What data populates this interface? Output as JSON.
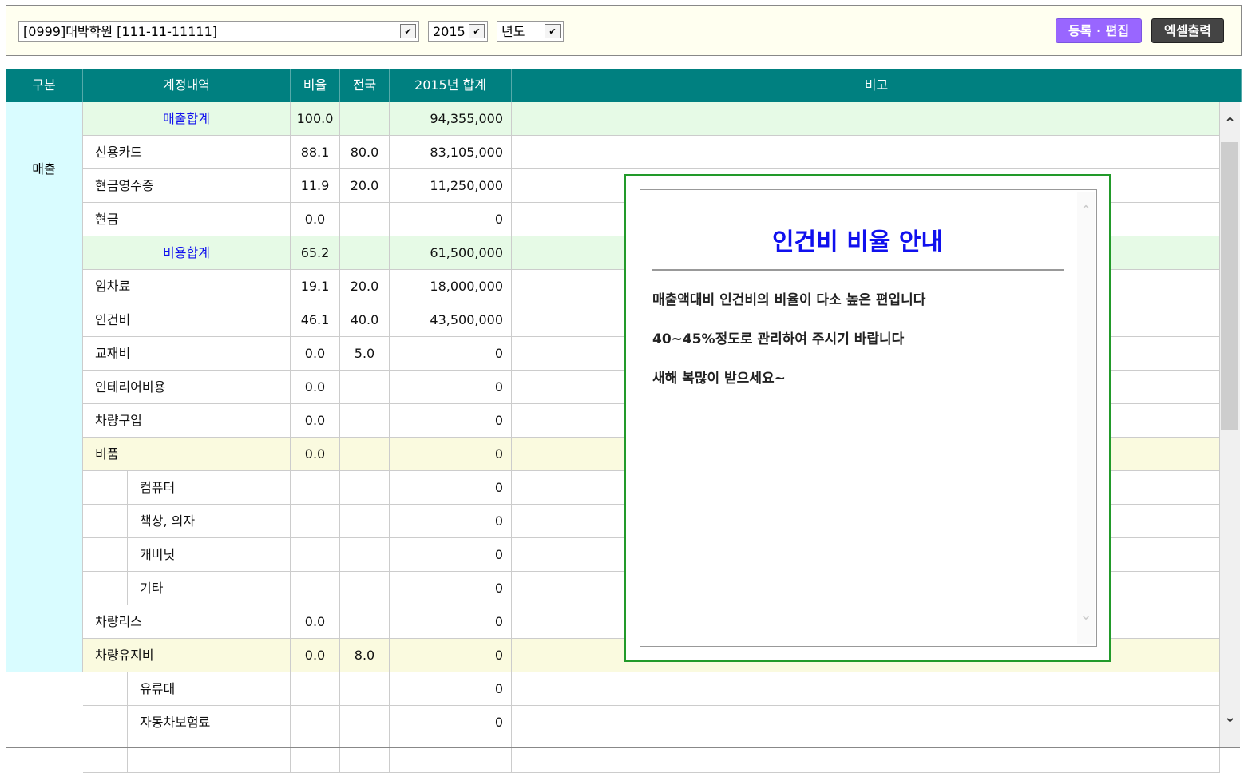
{
  "toolbar": {
    "company_select": "[0999]대박학원 [111-11-11111]",
    "year_select": "2015",
    "period_select": "년도",
    "register_edit_button": "등록 · 편집",
    "excel_export_button": "엑셀출력"
  },
  "colors": {
    "header_bg": "#008080",
    "total_row_bg": "#e6fae6",
    "subtotal_row_bg": "#fafadf",
    "group_bg": "#d9fcff",
    "register_button_bg": "#9966ff",
    "excel_button_bg": "#444444",
    "popup_border": "#229a2a",
    "popup_title": "#1010ee"
  },
  "table": {
    "headers": [
      "구분",
      "계정내역",
      "비율",
      "전국",
      "2015년 합계",
      "비고"
    ],
    "groups": [
      {
        "label": "매출",
        "rows": 4
      },
      {
        "label": "",
        "rows": 13
      }
    ],
    "rows": [
      {
        "name": "매출합계",
        "ratio": "100.0",
        "national": "",
        "total": "94,355,000",
        "type": "total"
      },
      {
        "name": "신용카드",
        "ratio": "88.1",
        "national": "80.0",
        "total": "83,105,000",
        "type": "normal"
      },
      {
        "name": "현금영수증",
        "ratio": "11.9",
        "national": "20.0",
        "total": "11,250,000",
        "type": "normal"
      },
      {
        "name": "현금",
        "ratio": "0.0",
        "national": "",
        "total": "0",
        "type": "normal"
      },
      {
        "name": "비용합계",
        "ratio": "65.2",
        "national": "",
        "total": "61,500,000",
        "type": "total"
      },
      {
        "name": "임차료",
        "ratio": "19.1",
        "national": "20.0",
        "total": "18,000,000",
        "type": "normal"
      },
      {
        "name": "인건비",
        "ratio": "46.1",
        "national": "40.0",
        "total": "43,500,000",
        "type": "normal"
      },
      {
        "name": "교재비",
        "ratio": "0.0",
        "national": "5.0",
        "total": "0",
        "type": "normal"
      },
      {
        "name": "인테리어비용",
        "ratio": "0.0",
        "national": "",
        "total": "0",
        "type": "normal"
      },
      {
        "name": "차량구입",
        "ratio": "0.0",
        "national": "",
        "total": "0",
        "type": "normal"
      },
      {
        "name": "비품",
        "ratio": "0.0",
        "national": "",
        "total": "0",
        "type": "subtotal"
      },
      {
        "name": "컴퓨터",
        "ratio": "",
        "national": "",
        "total": "0",
        "type": "sub"
      },
      {
        "name": "책상, 의자",
        "ratio": "",
        "national": "",
        "total": "0",
        "type": "sub"
      },
      {
        "name": "캐비닛",
        "ratio": "",
        "national": "",
        "total": "0",
        "type": "sub"
      },
      {
        "name": "기타",
        "ratio": "",
        "national": "",
        "total": "0",
        "type": "sub"
      },
      {
        "name": "차량리스",
        "ratio": "0.0",
        "national": "",
        "total": "0",
        "type": "normal"
      },
      {
        "name": "차량유지비",
        "ratio": "0.0",
        "national": "8.0",
        "total": "0",
        "type": "subtotal"
      },
      {
        "name": "유류대",
        "ratio": "",
        "national": "",
        "total": "0",
        "type": "sub"
      },
      {
        "name": "자동차보험료",
        "ratio": "",
        "national": "",
        "total": "0",
        "type": "sub"
      }
    ]
  },
  "popup": {
    "title": "인건비 비율 안내",
    "lines": [
      "매출액대비 인건비의 비율이 다소 높은 편입니다",
      "40~45%정도로 관리하여 주시기 바랍니다",
      "새해 복많이 받으세요~"
    ]
  }
}
